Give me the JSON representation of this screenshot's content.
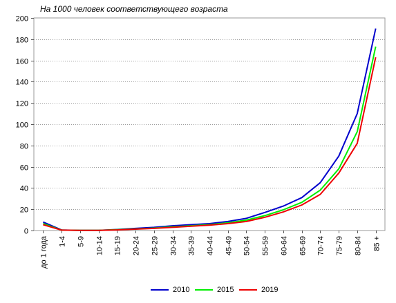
{
  "chart_data": {
    "type": "line",
    "title": "На 1000 человек соответствующего возраста",
    "xlabel": "",
    "ylabel": "",
    "ylim": [
      0,
      200
    ],
    "yticks": [
      "0",
      "20",
      "40",
      "60",
      "80",
      "100",
      "120",
      "140",
      "160",
      "180",
      "200"
    ],
    "categories": [
      "до 1 года",
      "1-4",
      "5-9",
      "10-14",
      "15-19",
      "20-24",
      "25-29",
      "30-34",
      "35-39",
      "40-44",
      "45-49",
      "50-54",
      "55-59",
      "60-64",
      "65-69",
      "70-74",
      "75-79",
      "80-84",
      "85 +"
    ],
    "grid": "horizontal",
    "legend_position": "bottom",
    "series": [
      {
        "name": "2010",
        "color": "#0000cc",
        "values": [
          8,
          0.5,
          0.2,
          0.2,
          1,
          2,
          3,
          4.5,
          5.5,
          6.5,
          8.5,
          11.5,
          17,
          23,
          31,
          45,
          70,
          110,
          190
        ]
      },
      {
        "name": "2015",
        "color": "#00ee00",
        "values": [
          6.5,
          0.4,
          0.2,
          0.2,
          0.8,
          1.5,
          2.3,
          3.5,
          4.5,
          5.5,
          7.2,
          9.8,
          14,
          19.5,
          26.5,
          38,
          58,
          93,
          173
        ]
      },
      {
        "name": "2019",
        "color": "#ee0000",
        "values": [
          5.5,
          0.4,
          0.2,
          0.2,
          0.6,
          1.3,
          2,
          3,
          4,
          5,
          6.5,
          8.5,
          12.5,
          17.5,
          24,
          34,
          54,
          82,
          163
        ]
      }
    ]
  }
}
